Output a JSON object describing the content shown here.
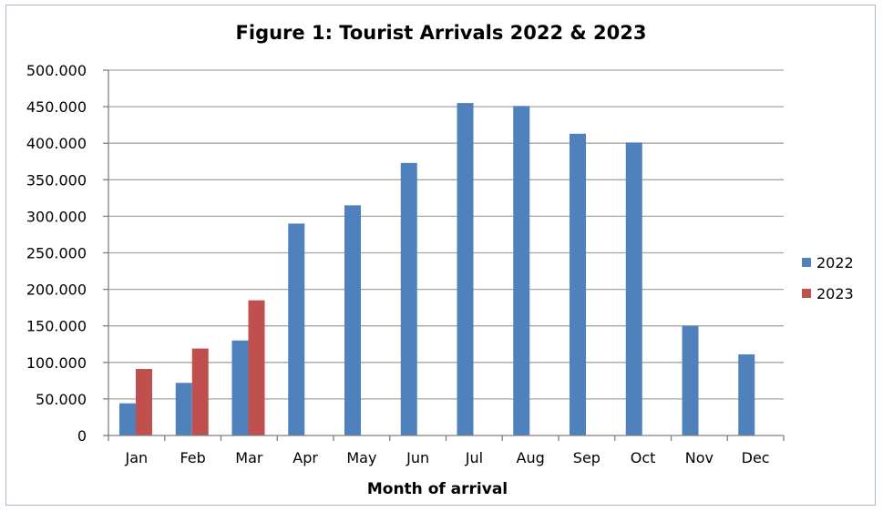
{
  "chart_data": {
    "type": "bar",
    "title": "Figure 1: Tourist Arrivals 2022 & 2023",
    "xlabel": "Month of arrival",
    "ylabel": "",
    "ylim": [
      0,
      500000
    ],
    "yticks": [
      {
        "value": 0,
        "label": "0"
      },
      {
        "value": 50000,
        "label": "50.000"
      },
      {
        "value": 100000,
        "label": "100.000"
      },
      {
        "value": 150000,
        "label": "150.000"
      },
      {
        "value": 200000,
        "label": "200.000"
      },
      {
        "value": 250000,
        "label": "250.000"
      },
      {
        "value": 300000,
        "label": "300.000"
      },
      {
        "value": 350000,
        "label": "350.000"
      },
      {
        "value": 400000,
        "label": "400.000"
      },
      {
        "value": 450000,
        "label": "450.000"
      },
      {
        "value": 500000,
        "label": "500.000"
      }
    ],
    "grid": true,
    "legend_position": "right",
    "categories": [
      "Jan",
      "Feb",
      "Mar",
      "Apr",
      "May",
      "Jun",
      "Jul",
      "Aug",
      "Sep",
      "Oct",
      "Nov",
      "Dec"
    ],
    "series": [
      {
        "name": "2022",
        "color": "#4f81bd",
        "values": [
          44000,
          72000,
          130000,
          290000,
          315000,
          373000,
          455000,
          451000,
          413000,
          401000,
          150000,
          111000
        ]
      },
      {
        "name": "2023",
        "color": "#c0504d",
        "values": [
          91000,
          119000,
          185000,
          null,
          null,
          null,
          null,
          null,
          null,
          null,
          null,
          null
        ]
      }
    ]
  }
}
